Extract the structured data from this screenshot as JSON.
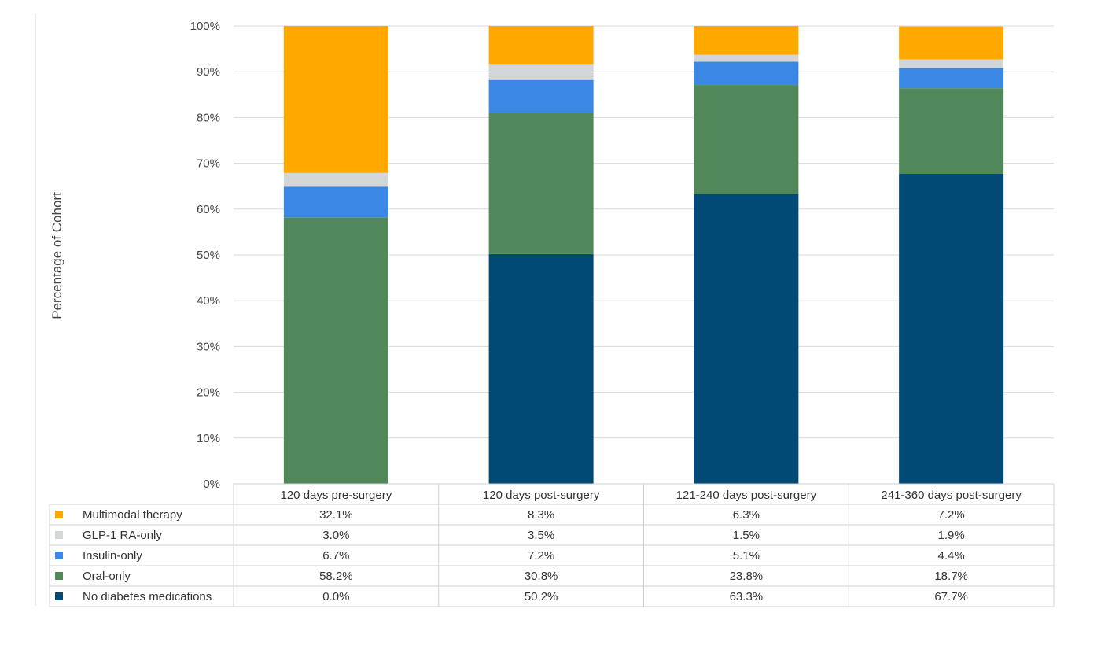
{
  "chart_data": {
    "type": "bar",
    "stacked": true,
    "categories": [
      "120 days pre-surgery",
      "120 days post-surgery",
      "121-240 days post-surgery",
      "241-360 days post-surgery"
    ],
    "series": [
      {
        "name": "No diabetes medications",
        "color": "#004a75",
        "values": [
          0.0,
          50.2,
          63.3,
          67.7
        ],
        "labels": [
          "0.0%",
          "50.2%",
          "63.3%",
          "67.7%"
        ]
      },
      {
        "name": "Oral-only",
        "color": "#50885a",
        "values": [
          58.2,
          30.8,
          23.8,
          18.7
        ],
        "labels": [
          "58.2%",
          "30.8%",
          "23.8%",
          "18.7%"
        ]
      },
      {
        "name": "Insulin-only",
        "color": "#3a87e6",
        "values": [
          6.7,
          7.2,
          5.1,
          4.4
        ],
        "labels": [
          "6.7%",
          "7.2%",
          "5.1%",
          "4.4%"
        ]
      },
      {
        "name": "GLP-1 RA-only",
        "color": "#d3d6d9",
        "values": [
          3.0,
          3.5,
          1.5,
          1.9
        ],
        "labels": [
          "3.0%",
          "3.5%",
          "1.5%",
          "1.9%"
        ]
      },
      {
        "name": "Multimodal therapy",
        "color": "#ffa800",
        "values": [
          32.1,
          8.3,
          6.3,
          7.2
        ],
        "labels": [
          "32.1%",
          "8.3%",
          "6.3%",
          "7.2%"
        ]
      }
    ],
    "table_order": [
      "Multimodal therapy",
      "GLP-1 RA-only",
      "Insulin-only",
      "Oral-only",
      "No diabetes medications"
    ],
    "ylabel": "Percentage of Cohort",
    "xlabel": "",
    "title": "",
    "ylim": [
      0,
      100
    ],
    "yticks": [
      "0%",
      "10%",
      "20%",
      "30%",
      "40%",
      "50%",
      "60%",
      "70%",
      "80%",
      "90%",
      "100%"
    ],
    "grid": true,
    "legend": "data-table"
  }
}
